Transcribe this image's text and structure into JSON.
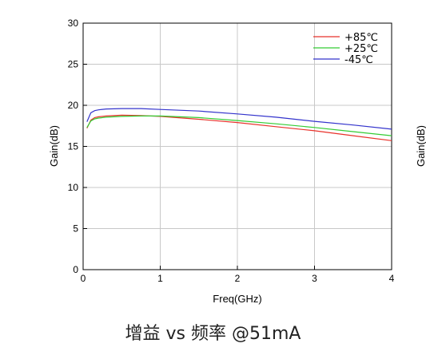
{
  "chart_data": {
    "type": "line",
    "xlabel": "Freq(GHz)",
    "ylabel": "Gain(dB)",
    "xlim": [
      0,
      4
    ],
    "ylim": [
      0,
      30
    ],
    "xticks": [
      "0",
      "1",
      "2",
      "3",
      "4"
    ],
    "yticks": [
      "0",
      "5",
      "10",
      "15",
      "20",
      "25",
      "30"
    ],
    "grid": true,
    "legend_position": "top-right",
    "cropped_neighbor_label": "Gain(dB)",
    "series": [
      {
        "name": "+85℃",
        "color": "#e8312a",
        "x": [
          0.05,
          0.1,
          0.15,
          0.2,
          0.3,
          0.5,
          0.75,
          1.0,
          1.5,
          2.0,
          2.5,
          3.0,
          3.5,
          4.0
        ],
        "y": [
          17.2,
          18.2,
          18.5,
          18.6,
          18.7,
          18.8,
          18.75,
          18.65,
          18.3,
          17.9,
          17.4,
          16.9,
          16.3,
          15.7
        ]
      },
      {
        "name": "+25℃",
        "color": "#33cc33",
        "x": [
          0.05,
          0.1,
          0.15,
          0.2,
          0.3,
          0.5,
          0.75,
          1.0,
          1.5,
          2.0,
          2.5,
          3.0,
          3.5,
          4.0
        ],
        "y": [
          17.3,
          18.1,
          18.35,
          18.45,
          18.55,
          18.65,
          18.7,
          18.7,
          18.5,
          18.15,
          17.75,
          17.3,
          16.8,
          16.3
        ]
      },
      {
        "name": "-45℃",
        "color": "#3333cc",
        "x": [
          0.05,
          0.1,
          0.15,
          0.2,
          0.3,
          0.5,
          0.75,
          1.0,
          1.5,
          2.0,
          2.5,
          3.0,
          3.5,
          4.0
        ],
        "y": [
          18.0,
          19.1,
          19.35,
          19.45,
          19.55,
          19.6,
          19.6,
          19.5,
          19.3,
          18.95,
          18.55,
          18.05,
          17.6,
          17.1
        ]
      }
    ]
  },
  "caption": "增益 vs 频率 @51mA"
}
